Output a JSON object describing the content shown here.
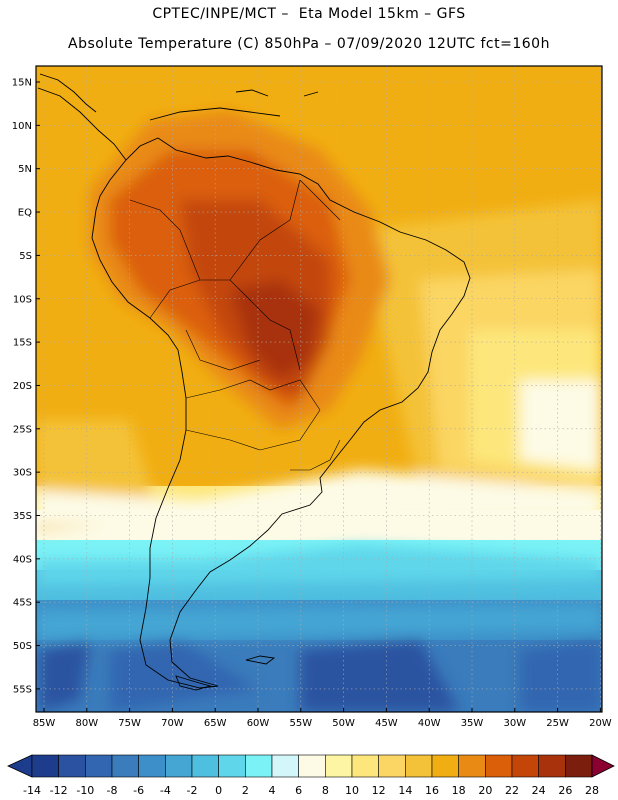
{
  "header": {
    "line1": "CPTEC/INPE/MCT –  Eta Model 15km – GFS",
    "line2": "Absolute Temperature (C) 850hPa – 07/09/2020 12UTC fct=160h"
  },
  "map": {
    "lat_labels": [
      "15N",
      "10N",
      "5N",
      "EQ",
      "5S",
      "10S",
      "15S",
      "20S",
      "25S",
      "30S",
      "35S",
      "40S",
      "45S",
      "50S",
      "55S"
    ],
    "lon_labels": [
      "85W",
      "80W",
      "75W",
      "70W",
      "65W",
      "60W",
      "55W",
      "50W",
      "45W",
      "40W",
      "35W",
      "30W",
      "25W",
      "20W"
    ]
  },
  "colorbar": {
    "labels": [
      "-14",
      "-12",
      "-10",
      "-8",
      "-6",
      "-4",
      "-2",
      "0",
      "2",
      "4",
      "6",
      "8",
      "10",
      "12",
      "14",
      "16",
      "18",
      "20",
      "22",
      "24",
      "26",
      "28"
    ],
    "colors": [
      "#1e3c8c",
      "#2a52a0",
      "#3366b0",
      "#3a7cbc",
      "#3c8fc8",
      "#45a6d4",
      "#4fbfe0",
      "#5fd6ea",
      "#7af2f6",
      "#d2f6fa",
      "#fdfbe6",
      "#fdf5a4",
      "#fde77c",
      "#fbd664",
      "#f4c238",
      "#f1ae12",
      "#e98a14",
      "#db5e08",
      "#c34608",
      "#a8320c",
      "#7c1e0e"
    ],
    "low_color": "#1e3c8c",
    "high_color": "#8a0030"
  }
}
